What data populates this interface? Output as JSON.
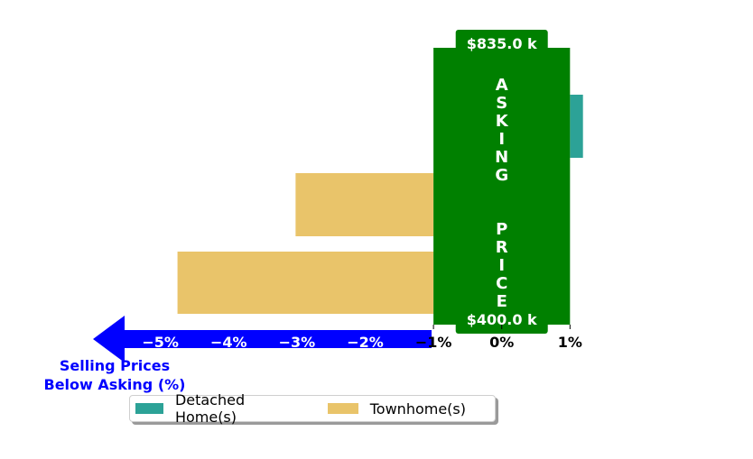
{
  "chart_data": {
    "type": "bar",
    "orientation": "horizontal",
    "x_ticks": [
      "−5%",
      "−4%",
      "−3%",
      "−2%",
      "−1%",
      "0%",
      "1%"
    ],
    "x_tick_values": [
      -5,
      -4,
      -3,
      -2,
      -1,
      0,
      1
    ],
    "xlim": [
      -5.3,
      1.3
    ],
    "categories": [
      "row-1",
      "row-2",
      "row-3"
    ],
    "series": [
      {
        "name": "Detached Home(s)",
        "color": "#2ca297",
        "bars": [
          {
            "category": "row-1",
            "start": 1.0,
            "end": 1.19
          }
        ]
      },
      {
        "name": "Townhome(s)",
        "color": "#e9c46a",
        "bars": [
          {
            "category": "row-2",
            "start": -3.02,
            "end": -1.0
          },
          {
            "category": "row-3",
            "start": -4.75,
            "end": -1.0
          }
        ]
      }
    ],
    "asking_price_band": {
      "start": -1.0,
      "end": 1.0,
      "color": "#008000",
      "label": "ASKING  PRICE",
      "top_label": "$835.0 k",
      "bottom_label": "$400.0 k"
    },
    "axis_arrow": {
      "color": "#0000ff",
      "label_line1": "Selling Prices",
      "label_line2": "Below Asking (%)"
    },
    "legend": {
      "position": "bottom-center",
      "entries": [
        {
          "name": "Detached Home(s)",
          "color": "#2ca297"
        },
        {
          "name": "Townhome(s)",
          "color": "#e9c46a"
        }
      ]
    },
    "grid": false
  }
}
